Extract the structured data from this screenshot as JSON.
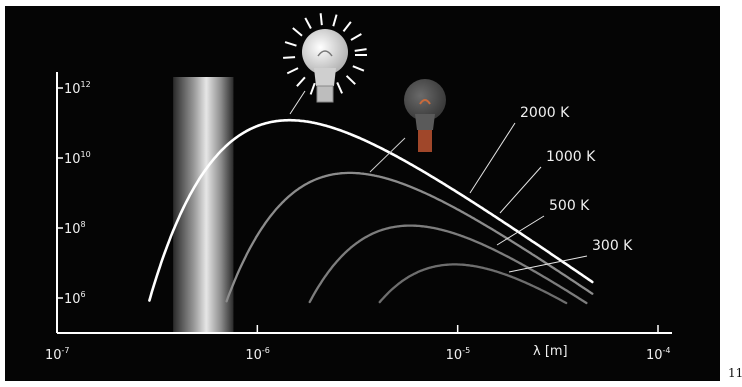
{
  "chart_data": {
    "type": "line",
    "title": "",
    "xlabel": "λ [m]",
    "ylabel": "",
    "xscale": "log",
    "yscale": "log",
    "xlim": [
      1e-07,
      0.0001
    ],
    "ylim": [
      100000.0,
      1000000000000.0
    ],
    "grid": false,
    "background": "#050505",
    "x_ticks": [
      {
        "base": "10",
        "exp": "-7",
        "value": 1e-07
      },
      {
        "base": "10",
        "exp": "-6",
        "value": 1e-06
      },
      {
        "base": "10",
        "exp": "-5",
        "value": 1e-05
      },
      {
        "base": "10",
        "exp": "-4",
        "value": 0.0001
      }
    ],
    "y_ticks": [
      {
        "base": "10",
        "exp": "6",
        "value": 1000000.0
      },
      {
        "base": "10",
        "exp": "8",
        "value": 100000000.0
      },
      {
        "base": "10",
        "exp": "10",
        "value": 10000000000.0
      },
      {
        "base": "10",
        "exp": "12",
        "value": 1000000000000.0
      }
    ],
    "visible_band": {
      "from": 3.8e-07,
      "to": 7.6e-07,
      "color": "#c8c8c8"
    },
    "series": [
      {
        "name": "2000 K",
        "temperature": 2000,
        "color": "#ffffff",
        "width": 2.6
      },
      {
        "name": "1000 K",
        "temperature": 1000,
        "color": "#8c8c8c",
        "width": 2.3
      },
      {
        "name": "500 K",
        "temperature": 500,
        "color": "#7d7d7d",
        "width": 2.3
      },
      {
        "name": "300 K",
        "temperature": 300,
        "color": "#6e6e6e",
        "width": 2.3
      }
    ],
    "x_max_plotted": 4.7e-05,
    "icons": {
      "bright_bulb": "lit-light-bulb-icon",
      "dim_bulb": "dim-light-bulb-icon"
    }
  },
  "corner_text": "11"
}
